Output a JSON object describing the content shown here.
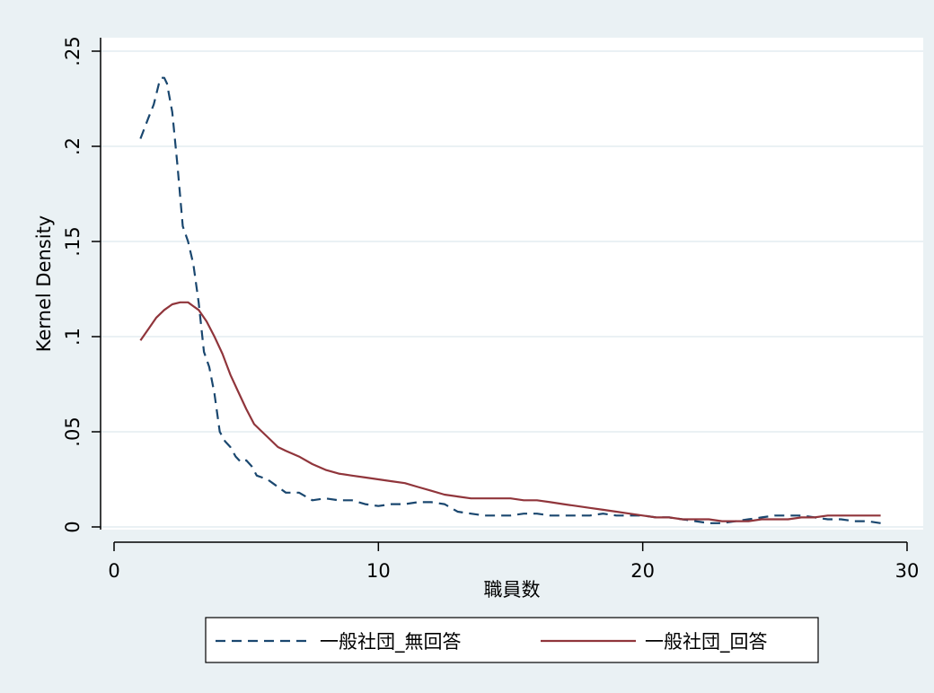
{
  "chart_data": {
    "type": "line",
    "title": "",
    "xlabel": "職員数",
    "ylabel": "Kernel Density",
    "xlim": [
      0,
      30
    ],
    "ylim": [
      0,
      0.25
    ],
    "xticks": [
      0,
      10,
      20,
      30
    ],
    "xtick_labels": [
      "0",
      "10",
      "20",
      "30"
    ],
    "yticks": [
      0,
      0.05,
      0.1,
      0.15,
      0.2,
      0.25
    ],
    "ytick_labels": [
      "0",
      ".05",
      ".1",
      ".15",
      ".2",
      ".25"
    ],
    "grid": true,
    "legend_position": "bottom",
    "series": [
      {
        "name": "一般社団_無回答",
        "color": "#1a476f",
        "style": "dashed",
        "x": [
          1.0,
          1.3,
          1.5,
          1.7,
          1.8,
          1.9,
          2.0,
          2.2,
          2.4,
          2.6,
          2.8,
          3.0,
          3.2,
          3.4,
          3.6,
          3.8,
          4.0,
          4.2,
          4.4,
          4.6,
          4.8,
          5.0,
          5.2,
          5.4,
          5.6,
          5.8,
          6.0,
          6.5,
          7.0,
          7.5,
          8.0,
          8.5,
          9.0,
          9.5,
          10.0,
          10.5,
          11.0,
          11.5,
          12.0,
          12.5,
          13.0,
          13.5,
          14.0,
          14.5,
          15.0,
          15.5,
          16.0,
          16.5,
          17.0,
          17.5,
          18.0,
          18.5,
          19.0,
          19.5,
          20.0,
          20.5,
          21.0,
          21.5,
          22.0,
          22.5,
          23.0,
          23.5,
          24.0,
          24.5,
          25.0,
          25.5,
          26.0,
          26.5,
          27.0,
          27.5,
          28.0,
          28.5,
          29.0
        ],
        "y": [
          0.204,
          0.215,
          0.222,
          0.233,
          0.236,
          0.236,
          0.233,
          0.218,
          0.19,
          0.158,
          0.15,
          0.138,
          0.118,
          0.092,
          0.084,
          0.07,
          0.05,
          0.045,
          0.042,
          0.037,
          0.034,
          0.035,
          0.032,
          0.027,
          0.026,
          0.025,
          0.023,
          0.018,
          0.018,
          0.014,
          0.015,
          0.014,
          0.014,
          0.012,
          0.011,
          0.012,
          0.012,
          0.013,
          0.013,
          0.012,
          0.008,
          0.007,
          0.006,
          0.006,
          0.006,
          0.007,
          0.007,
          0.006,
          0.006,
          0.006,
          0.006,
          0.007,
          0.006,
          0.006,
          0.006,
          0.005,
          0.005,
          0.004,
          0.003,
          0.002,
          0.002,
          0.003,
          0.004,
          0.005,
          0.006,
          0.006,
          0.006,
          0.005,
          0.004,
          0.004,
          0.003,
          0.003,
          0.002
        ]
      },
      {
        "name": "一般社団_回答",
        "color": "#90353b",
        "style": "solid",
        "x": [
          1.0,
          1.3,
          1.6,
          1.9,
          2.2,
          2.5,
          2.8,
          3.0,
          3.2,
          3.5,
          3.8,
          4.1,
          4.4,
          4.7,
          5.0,
          5.3,
          5.6,
          5.9,
          6.2,
          6.5,
          7.0,
          7.5,
          8.0,
          8.5,
          9.0,
          9.5,
          10.0,
          10.5,
          11.0,
          11.5,
          12.0,
          12.5,
          13.0,
          13.5,
          14.0,
          14.5,
          15.0,
          15.5,
          16.0,
          16.5,
          17.0,
          17.5,
          18.0,
          18.5,
          19.0,
          19.5,
          20.0,
          20.5,
          21.0,
          21.5,
          22.0,
          22.5,
          23.0,
          23.5,
          24.0,
          24.5,
          25.0,
          25.5,
          26.0,
          26.5,
          27.0,
          27.5,
          28.0,
          28.5,
          29.0
        ],
        "y": [
          0.098,
          0.104,
          0.11,
          0.114,
          0.117,
          0.118,
          0.118,
          0.116,
          0.114,
          0.108,
          0.1,
          0.091,
          0.08,
          0.071,
          0.062,
          0.054,
          0.05,
          0.046,
          0.042,
          0.04,
          0.037,
          0.033,
          0.03,
          0.028,
          0.027,
          0.026,
          0.025,
          0.024,
          0.023,
          0.021,
          0.019,
          0.017,
          0.016,
          0.015,
          0.015,
          0.015,
          0.015,
          0.014,
          0.014,
          0.013,
          0.012,
          0.011,
          0.01,
          0.009,
          0.008,
          0.007,
          0.006,
          0.005,
          0.005,
          0.004,
          0.004,
          0.004,
          0.003,
          0.003,
          0.003,
          0.004,
          0.004,
          0.004,
          0.005,
          0.005,
          0.006,
          0.006,
          0.006,
          0.006,
          0.006
        ]
      }
    ]
  }
}
